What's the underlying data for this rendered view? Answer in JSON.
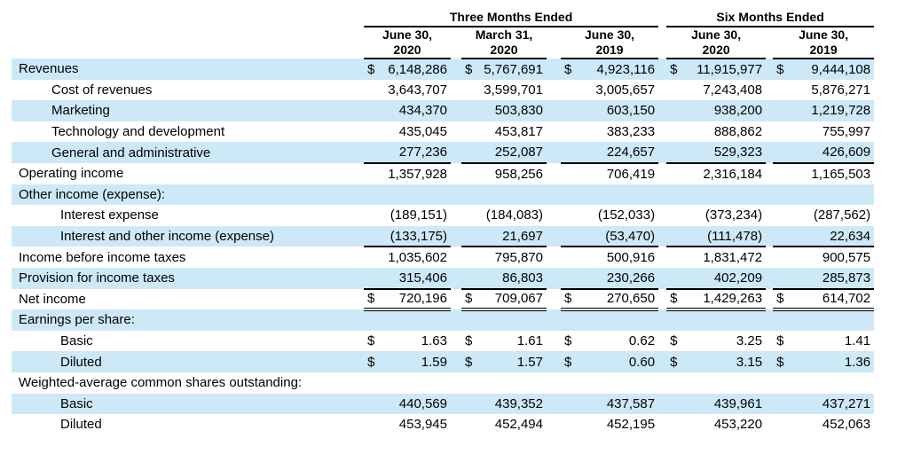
{
  "colors": {
    "stripe": "#cde9f8",
    "rule": "#000000",
    "text": "#000000"
  },
  "table": {
    "currency_symbol": "$",
    "group_headers": [
      {
        "label": "Three Months Ended"
      },
      {
        "label": "Six Months Ended"
      }
    ],
    "column_headers": [
      {
        "line1": "June 30,",
        "line2": "2020"
      },
      {
        "line1": "March 31,",
        "line2": "2020"
      },
      {
        "line1": "June 30,",
        "line2": "2019"
      },
      {
        "line1": "June 30,",
        "line2": "2020"
      },
      {
        "line1": "June 30,",
        "line2": "2019"
      }
    ],
    "rows": [
      {
        "label": "Revenues",
        "indent": 0,
        "shaded": true,
        "dollar": true,
        "rule": "none",
        "values": [
          "6,148,286",
          "5,767,691",
          "4,923,116",
          "11,915,977",
          "9,444,108"
        ]
      },
      {
        "label": "Cost of revenues",
        "indent": 1,
        "shaded": false,
        "dollar": false,
        "rule": "none",
        "values": [
          "3,643,707",
          "3,599,701",
          "3,005,657",
          "7,243,408",
          "5,876,271"
        ]
      },
      {
        "label": "Marketing",
        "indent": 1,
        "shaded": true,
        "dollar": false,
        "rule": "none",
        "values": [
          "434,370",
          "503,830",
          "603,150",
          "938,200",
          "1,219,728"
        ]
      },
      {
        "label": "Technology and development",
        "indent": 1,
        "shaded": false,
        "dollar": false,
        "rule": "none",
        "values": [
          "435,045",
          "453,817",
          "383,233",
          "888,862",
          "755,997"
        ]
      },
      {
        "label": "General and administrative",
        "indent": 1,
        "shaded": true,
        "dollar": false,
        "rule": "single",
        "values": [
          "277,236",
          "252,087",
          "224,657",
          "529,323",
          "426,609"
        ]
      },
      {
        "label": "Operating income",
        "indent": 0,
        "shaded": false,
        "dollar": false,
        "rule": "none",
        "values": [
          "1,357,928",
          "958,256",
          "706,419",
          "2,316,184",
          "1,165,503"
        ]
      },
      {
        "label": "Other income (expense):",
        "indent": 0,
        "shaded": true,
        "dollar": false,
        "rule": "none",
        "values": [
          "",
          "",
          "",
          "",
          ""
        ]
      },
      {
        "label": "Interest expense",
        "indent": 2,
        "shaded": false,
        "dollar": false,
        "rule": "none",
        "values": [
          "(189,151)",
          "(184,083)",
          "(152,033)",
          "(373,234)",
          "(287,562)"
        ]
      },
      {
        "label": "Interest and other income (expense)",
        "indent": 2,
        "shaded": true,
        "dollar": false,
        "rule": "single",
        "values": [
          "(133,175)",
          "21,697",
          "(53,470)",
          "(111,478)",
          "22,634"
        ]
      },
      {
        "label": "Income before income taxes",
        "indent": 0,
        "shaded": false,
        "dollar": false,
        "rule": "none",
        "values": [
          "1,035,602",
          "795,870",
          "500,916",
          "1,831,472",
          "900,575"
        ]
      },
      {
        "label": "Provision for income taxes",
        "indent": 0,
        "shaded": true,
        "dollar": false,
        "rule": "single",
        "values": [
          "315,406",
          "86,803",
          "230,266",
          "402,209",
          "285,873"
        ]
      },
      {
        "label": "Net income",
        "indent": 0,
        "shaded": false,
        "dollar": true,
        "rule": "double",
        "values": [
          "720,196",
          "709,067",
          "270,650",
          "1,429,263",
          "614,702"
        ]
      },
      {
        "label": "Earnings per share:",
        "indent": 0,
        "shaded": true,
        "dollar": false,
        "rule": "none",
        "values": [
          "",
          "",
          "",
          "",
          ""
        ]
      },
      {
        "label": "Basic",
        "indent": 2,
        "shaded": false,
        "dollar": true,
        "rule": "none",
        "values": [
          "1.63",
          "1.61",
          "0.62",
          "3.25",
          "1.41"
        ]
      },
      {
        "label": "Diluted",
        "indent": 2,
        "shaded": true,
        "dollar": true,
        "rule": "none",
        "values": [
          "1.59",
          "1.57",
          "0.60",
          "3.15",
          "1.36"
        ]
      },
      {
        "label": "Weighted-average common shares outstanding:",
        "indent": 0,
        "shaded": false,
        "dollar": false,
        "rule": "none",
        "values": [
          "",
          "",
          "",
          "",
          ""
        ]
      },
      {
        "label": "Basic",
        "indent": 2,
        "shaded": true,
        "dollar": false,
        "rule": "none",
        "values": [
          "440,569",
          "439,352",
          "437,587",
          "439,961",
          "437,271"
        ]
      },
      {
        "label": "Diluted",
        "indent": 2,
        "shaded": false,
        "dollar": false,
        "rule": "none",
        "values": [
          "453,945",
          "452,494",
          "452,195",
          "453,220",
          "452,063"
        ]
      }
    ]
  }
}
